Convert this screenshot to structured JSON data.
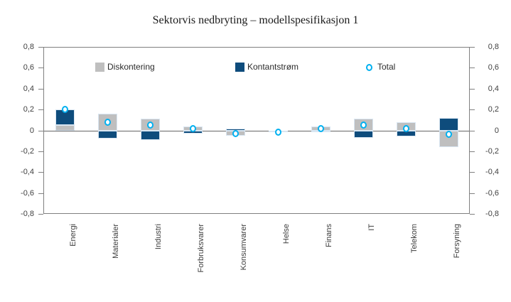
{
  "chart_data": {
    "type": "bar",
    "stacked": true,
    "title": "Sektorvis nedbryting – modellspesifikasjon 1",
    "categories": [
      "Energi",
      "Materialer",
      "Industri",
      "Forbruksvarer",
      "Konsumvarer",
      "Helse",
      "Finans",
      "IT",
      "Telekom",
      "Forsyning"
    ],
    "series": [
      {
        "name": "Diskontering",
        "type": "bar",
        "color": "#bfbfbf",
        "values": [
          0.05,
          0.16,
          0.11,
          0.04,
          -0.05,
          0.0,
          0.04,
          0.11,
          0.08,
          -0.16
        ]
      },
      {
        "name": "Kontantstrøm",
        "type": "bar",
        "color": "#0e4c7c",
        "values": [
          0.15,
          -0.08,
          -0.09,
          -0.03,
          0.02,
          -0.02,
          -0.02,
          -0.07,
          -0.06,
          0.12
        ]
      },
      {
        "name": "Total",
        "type": "marker-circle",
        "color": "#00b0f0",
        "values": [
          0.2,
          0.08,
          0.05,
          0.02,
          -0.03,
          -0.02,
          0.02,
          0.05,
          0.02,
          -0.04
        ]
      }
    ],
    "ylim": [
      -0.8,
      0.8
    ],
    "yticks": {
      "values": [
        0.8,
        0.6,
        0.4,
        0.2,
        0,
        -0.2,
        -0.4,
        -0.6,
        -0.8
      ],
      "labels": [
        "0,8",
        "0,6",
        "0,4",
        "0,2",
        "0",
        "-0,2",
        "-0,4",
        "-0,6",
        "-0,8"
      ]
    },
    "y_axis_sides": [
      "left",
      "right"
    ],
    "decimal_separator": ",",
    "grid": "off",
    "legend_position": "top-inside",
    "axis_color": "#808080",
    "zero_line_color": "#666666",
    "xlabel": "",
    "ylabel": ""
  }
}
